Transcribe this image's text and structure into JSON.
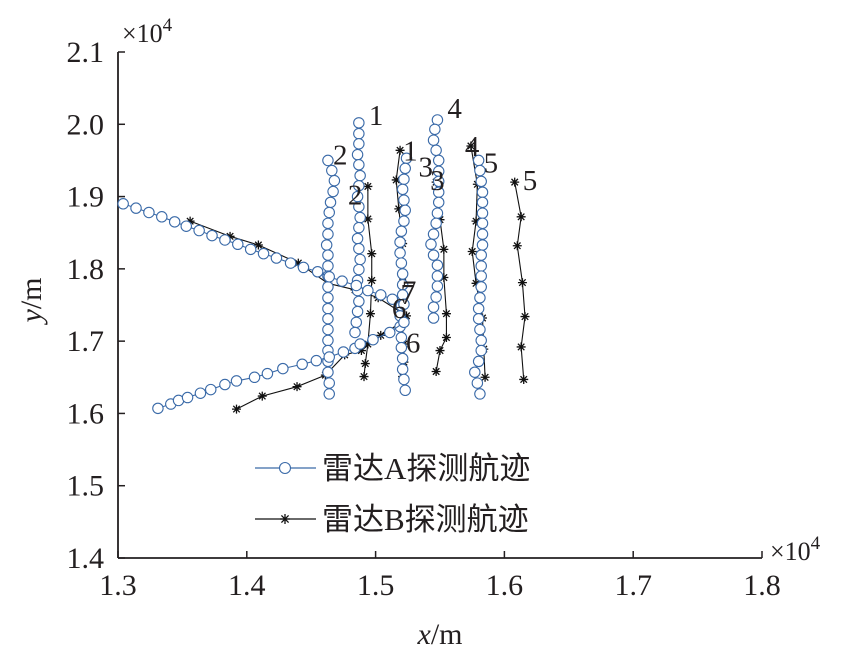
{
  "chart_data": {
    "type": "scatter",
    "title": "",
    "xlabel": {
      "var": "x",
      "unit": "/m"
    },
    "ylabel": {
      "var": "y",
      "unit": "/m"
    },
    "xlim": [
      1.3,
      1.8
    ],
    "ylim": [
      1.4,
      2.1
    ],
    "x_ticks": [
      "1.3",
      "1.4",
      "1.5",
      "1.6",
      "1.7",
      "1.8"
    ],
    "y_ticks": [
      "1.4",
      "1.5",
      "1.6",
      "1.7",
      "1.8",
      "1.9",
      "2.0",
      "2.1"
    ],
    "x_exponent": "×10",
    "x_exponent_power": "4",
    "y_exponent": "×10",
    "y_exponent_power": "4",
    "grid": false,
    "legend_position": "lower-left",
    "colors": {
      "radar_a": "#3a6aa8",
      "radar_b": "#111111",
      "axis": "#231f20"
    },
    "series": [
      {
        "name": "雷达A探测航迹",
        "marker": "circle",
        "tracks": [
          {
            "label": "1",
            "x": [
              1.487,
              1.487,
              1.487,
              1.486,
              1.487,
              1.488,
              1.487,
              1.486,
              1.487,
              1.488,
              1.487,
              1.486,
              1.487,
              1.488,
              1.487,
              1.486,
              1.486,
              1.487,
              1.486,
              1.485,
              1.484
            ],
            "y": [
              2.002,
              1.987,
              1.973,
              1.958,
              1.944,
              1.929,
              1.915,
              1.9,
              1.886,
              1.871,
              1.857,
              1.842,
              1.828,
              1.813,
              1.799,
              1.784,
              1.77,
              1.755,
              1.741,
              1.726,
              1.712
            ]
          },
          {
            "label": "2",
            "x": [
              1.463,
              1.466,
              1.468,
              1.467,
              1.465,
              1.464,
              1.463,
              1.463,
              1.462,
              1.463,
              1.463,
              1.463,
              1.463,
              1.463,
              1.463,
              1.463,
              1.463,
              1.463,
              1.463,
              1.463,
              1.463,
              1.464,
              1.464
            ],
            "y": [
              1.95,
              1.936,
              1.922,
              1.907,
              1.892,
              1.878,
              1.863,
              1.848,
              1.833,
              1.819,
              1.804,
              1.79,
              1.775,
              1.76,
              1.745,
              1.731,
              1.716,
              1.701,
              1.687,
              1.672,
              1.657,
              1.642,
              1.627
            ]
          },
          {
            "label": "3",
            "x": [
              1.524,
              1.523,
              1.522,
              1.521,
              1.522,
              1.523,
              1.522,
              1.52,
              1.519,
              1.519,
              1.52,
              1.521,
              1.521,
              1.521,
              1.52,
              1.519,
              1.519,
              1.52,
              1.52,
              1.521,
              1.521,
              1.522,
              1.523
            ],
            "y": [
              1.953,
              1.939,
              1.924,
              1.91,
              1.895,
              1.881,
              1.866,
              1.852,
              1.837,
              1.822,
              1.808,
              1.793,
              1.778,
              1.764,
              1.749,
              1.735,
              1.72,
              1.705,
              1.691,
              1.676,
              1.661,
              1.647,
              1.632
            ]
          },
          {
            "label": "4",
            "x": [
              1.548,
              1.546,
              1.545,
              1.547,
              1.549,
              1.549,
              1.549,
              1.549,
              1.549,
              1.548,
              1.547,
              1.545,
              1.543,
              1.545,
              1.548,
              1.548,
              1.548,
              1.547,
              1.545,
              1.545
            ],
            "y": [
              2.006,
              1.993,
              1.978,
              1.964,
              1.95,
              1.935,
              1.921,
              1.906,
              1.892,
              1.877,
              1.863,
              1.848,
              1.834,
              1.819,
              1.805,
              1.79,
              1.776,
              1.761,
              1.747,
              1.732
            ]
          },
          {
            "label": "5",
            "x": [
              1.58,
              1.581,
              1.582,
              1.583,
              1.583,
              1.583,
              1.583,
              1.583,
              1.583,
              1.582,
              1.582,
              1.582,
              1.582,
              1.581,
              1.58,
              1.58,
              1.581,
              1.582,
              1.582,
              1.58,
              1.577,
              1.579,
              1.581
            ],
            "y": [
              1.95,
              1.936,
              1.921,
              1.906,
              1.892,
              1.877,
              1.863,
              1.848,
              1.833,
              1.819,
              1.804,
              1.79,
              1.775,
              1.76,
              1.745,
              1.731,
              1.716,
              1.701,
              1.687,
              1.672,
              1.657,
              1.642,
              1.627
            ]
          },
          {
            "label": "6",
            "x": [
              1.331,
              1.341,
              1.347,
              1.354,
              1.364,
              1.372,
              1.383,
              1.392,
              1.406,
              1.416,
              1.428,
              1.443,
              1.454,
              1.464,
              1.475,
              1.484,
              1.488,
              1.498,
              1.511,
              1.522
            ],
            "y": [
              1.607,
              1.613,
              1.618,
              1.622,
              1.628,
              1.633,
              1.64,
              1.645,
              1.65,
              1.655,
              1.662,
              1.668,
              1.673,
              1.678,
              1.685,
              1.69,
              1.696,
              1.702,
              1.712,
              1.726
            ]
          },
          {
            "label": "7",
            "x": [
              1.304,
              1.314,
              1.324,
              1.334,
              1.344,
              1.353,
              1.363,
              1.373,
              1.383,
              1.393,
              1.403,
              1.413,
              1.423,
              1.434,
              1.444,
              1.455,
              1.464,
              1.474,
              1.485,
              1.494,
              1.504,
              1.513,
              1.522
            ],
            "y": [
              1.89,
              1.884,
              1.878,
              1.872,
              1.865,
              1.859,
              1.853,
              1.846,
              1.84,
              1.834,
              1.827,
              1.821,
              1.815,
              1.808,
              1.802,
              1.796,
              1.789,
              1.783,
              1.777,
              1.77,
              1.764,
              1.758,
              1.751
            ]
          }
        ]
      },
      {
        "name": "雷达B探测航迹",
        "marker": "star",
        "tracks": [
          {
            "label": "1",
            "x": [
              1.519,
              1.516,
              1.518,
              1.521,
              1.521,
              1.52,
              1.522,
              1.522,
              1.521
            ],
            "y": [
              1.964,
              1.923,
              1.883,
              1.835,
              1.782,
              1.737,
              1.696,
              1.671,
              1.651
            ]
          },
          {
            "label": "2",
            "x": [
              1.494,
              1.494,
              1.497,
              1.497,
              1.496,
              1.494,
              1.492,
              1.491
            ],
            "y": [
              1.914,
              1.869,
              1.821,
              1.784,
              1.738,
              1.696,
              1.669,
              1.651
            ]
          },
          {
            "label": "3",
            "x": [
              1.547,
              1.55,
              1.553,
              1.553,
              1.555,
              1.555,
              1.55,
              1.547
            ],
            "y": [
              1.92,
              1.868,
              1.827,
              1.788,
              1.738,
              1.705,
              1.687,
              1.658
            ]
          },
          {
            "label": "4",
            "x": [
              1.574,
              1.579,
              1.578,
              1.575,
              1.578,
              1.583,
              1.584,
              1.585
            ],
            "y": [
              1.97,
              1.917,
              1.866,
              1.824,
              1.78,
              1.732,
              1.689,
              1.65
            ]
          },
          {
            "label": "5",
            "x": [
              1.608,
              1.613,
              1.61,
              1.614,
              1.616,
              1.613,
              1.615
            ],
            "y": [
              1.92,
              1.872,
              1.832,
              1.781,
              1.734,
              1.692,
              1.647
            ]
          },
          {
            "label": "6",
            "x": [
              1.392,
              1.412,
              1.439,
              1.461,
              1.476,
              1.489,
              1.504,
              1.522
            ],
            "y": [
              1.606,
              1.624,
              1.637,
              1.653,
              1.681,
              1.687,
              1.708,
              1.728
            ]
          },
          {
            "label": "7",
            "x": [
              1.356,
              1.387,
              1.409,
              1.44,
              1.463,
              1.484,
              1.502,
              1.524
            ],
            "y": [
              1.866,
              1.845,
              1.833,
              1.808,
              1.78,
              1.771,
              1.76,
              1.735
            ]
          }
        ]
      }
    ]
  }
}
